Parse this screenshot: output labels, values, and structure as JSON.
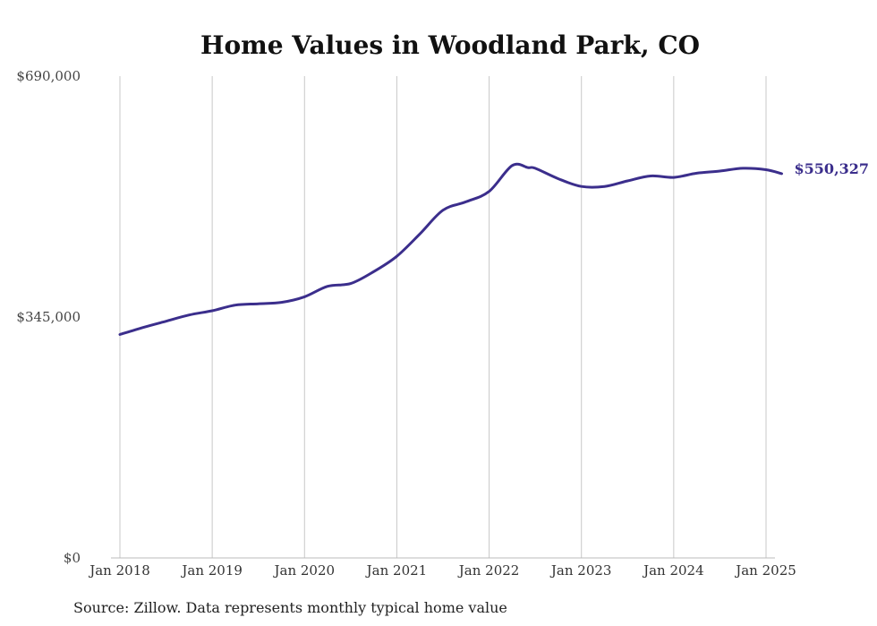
{
  "chart_data": {
    "type": "line",
    "title": "Home Values in Woodland Park, CO",
    "xlabel": "",
    "ylabel": "",
    "ylim": [
      0,
      690000
    ],
    "y_ticks": [
      "$0",
      "$345,000",
      "$690,000"
    ],
    "y_tick_values": [
      0,
      345000,
      690000
    ],
    "x_tick_labels": [
      "Jan 2018",
      "Jan 2019",
      "Jan 2020",
      "Jan 2021",
      "Jan 2022",
      "Jan 2023",
      "Jan 2024",
      "Jan 2025"
    ],
    "x_tick_values": [
      2018,
      2019,
      2020,
      2021,
      2022,
      2023,
      2024,
      2025
    ],
    "grid": "vertical",
    "series": [
      {
        "color": "#3b2e8c",
        "end_label": "$550,327",
        "points": [
          [
            2018.0,
            320000
          ],
          [
            2018.25,
            330000
          ],
          [
            2018.5,
            339000
          ],
          [
            2018.75,
            348000
          ],
          [
            2019.0,
            354000
          ],
          [
            2019.25,
            362000
          ],
          [
            2019.5,
            364000
          ],
          [
            2019.75,
            366000
          ],
          [
            2020.0,
            374000
          ],
          [
            2020.25,
            389000
          ],
          [
            2020.5,
            393000
          ],
          [
            2020.75,
            410000
          ],
          [
            2021.0,
            432000
          ],
          [
            2021.25,
            464000
          ],
          [
            2021.5,
            498000
          ],
          [
            2021.75,
            510000
          ],
          [
            2022.0,
            525000
          ],
          [
            2022.25,
            562000
          ],
          [
            2022.42,
            559000
          ],
          [
            2022.5,
            558000
          ],
          [
            2022.75,
            543000
          ],
          [
            2023.0,
            532000
          ],
          [
            2023.25,
            532000
          ],
          [
            2023.5,
            540000
          ],
          [
            2023.75,
            547000
          ],
          [
            2024.0,
            545000
          ],
          [
            2024.25,
            551000
          ],
          [
            2024.5,
            554000
          ],
          [
            2024.75,
            558000
          ],
          [
            2025.0,
            556000
          ],
          [
            2025.17,
            550327
          ]
        ]
      }
    ]
  },
  "footer": {
    "source": "Source: Zillow. Data represents monthly typical home value"
  }
}
